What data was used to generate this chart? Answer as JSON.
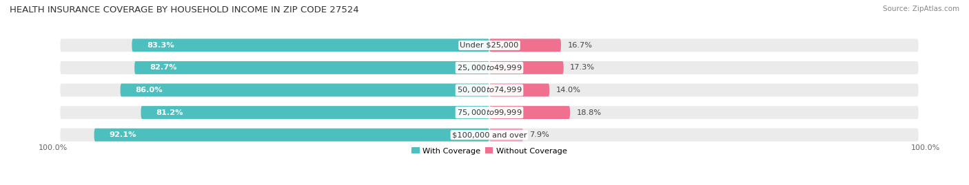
{
  "title": "HEALTH INSURANCE COVERAGE BY HOUSEHOLD INCOME IN ZIP CODE 27524",
  "source": "Source: ZipAtlas.com",
  "categories": [
    "Under $25,000",
    "$25,000 to $49,999",
    "$50,000 to $74,999",
    "$75,000 to $99,999",
    "$100,000 and over"
  ],
  "with_coverage": [
    83.3,
    82.7,
    86.0,
    81.2,
    92.1
  ],
  "without_coverage": [
    16.7,
    17.3,
    14.0,
    18.8,
    7.9
  ],
  "color_with": "#4DBFBF",
  "color_without": "#F07090",
  "color_without_last": "#F4A0B8",
  "bar_bg_color": "#EBEBEB",
  "title_fontsize": 9.5,
  "label_fontsize": 8.2,
  "tick_fontsize": 8.0,
  "legend_fontsize": 8.2,
  "x_left_label": "100.0%",
  "x_right_label": "100.0%"
}
